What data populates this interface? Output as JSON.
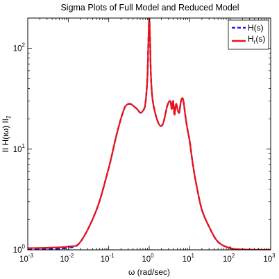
{
  "chart_data": {
    "type": "line",
    "title": "Sigma Plots of Full Model and Reduced Model",
    "xlabel": "ω (rad/sec)",
    "ylabel": "ΙΙ H(ιω) ΙΙ",
    "ylabel_subscript": "2",
    "xscale": "log",
    "yscale": "log",
    "xlim": [
      0.001,
      1000
    ],
    "ylim": [
      1,
      200
    ],
    "grid": false,
    "legend_position": "top-right",
    "x_ticks": [
      {
        "base": "10",
        "exp": "-3",
        "value": 0.001
      },
      {
        "base": "10",
        "exp": "-2",
        "value": 0.01
      },
      {
        "base": "10",
        "exp": "-1",
        "value": 0.1
      },
      {
        "base": "10",
        "exp": "0",
        "value": 1
      },
      {
        "base": "10",
        "exp": "1",
        "value": 10
      },
      {
        "base": "10",
        "exp": "2",
        "value": 100
      },
      {
        "base": "10",
        "exp": "3",
        "value": 1000
      }
    ],
    "y_ticks": [
      {
        "base": "10",
        "exp": "0",
        "value": 1
      },
      {
        "base": "10",
        "exp": "1",
        "value": 10
      },
      {
        "base": "10",
        "exp": "2",
        "value": 100
      }
    ],
    "series": [
      {
        "name": "H(s)",
        "color": "#1a1aff",
        "dash": "dashed",
        "x": [
          0.001,
          0.003,
          0.01,
          0.02,
          0.05,
          0.1,
          0.15,
          0.2,
          0.25,
          0.3,
          0.35,
          0.4,
          0.5,
          0.6,
          0.7,
          0.8,
          0.9,
          0.95,
          1.0,
          1.05,
          1.1,
          1.2,
          1.4,
          1.7,
          2.0,
          2.3,
          2.8,
          3.3,
          3.6,
          3.9,
          4.2,
          4.6,
          5.0,
          5.5,
          6.0,
          6.5,
          7.0,
          8.0,
          9.0,
          10,
          12,
          15,
          20,
          30,
          50,
          100,
          200,
          500,
          1000
        ],
        "y": [
          1.0,
          1.02,
          1.05,
          1.2,
          2.5,
          6.5,
          13,
          20,
          26,
          28,
          28,
          27,
          25,
          23,
          24,
          28,
          50,
          110,
          200,
          120,
          55,
          32,
          23,
          18,
          17,
          19,
          27,
          30,
          25,
          30,
          22,
          28,
          25,
          23,
          29,
          32,
          30,
          20,
          15,
          12,
          7,
          4.2,
          2.5,
          1.7,
          1.2,
          1.04,
          1.01,
          1.0,
          1.0
        ]
      },
      {
        "name": "H",
        "name_subscript": "r",
        "name_suffix": "(s)",
        "color": "#ee1111",
        "dash": "solid",
        "x": [
          0.001,
          0.003,
          0.01,
          0.02,
          0.05,
          0.1,
          0.15,
          0.2,
          0.25,
          0.3,
          0.35,
          0.4,
          0.5,
          0.6,
          0.7,
          0.8,
          0.9,
          0.95,
          1.0,
          1.05,
          1.1,
          1.2,
          1.4,
          1.7,
          2.0,
          2.3,
          2.8,
          3.3,
          3.6,
          3.9,
          4.2,
          4.6,
          5.0,
          5.5,
          6.0,
          6.5,
          7.0,
          8.0,
          9.0,
          10,
          12,
          15,
          20,
          30,
          50,
          100,
          200,
          500,
          1000
        ],
        "y": [
          1.04,
          1.05,
          1.08,
          1.2,
          2.5,
          6.5,
          13,
          20,
          26,
          28,
          28,
          27,
          25,
          23,
          24,
          28,
          50,
          110,
          200,
          120,
          55,
          32,
          23,
          18,
          17,
          19,
          27,
          30,
          25,
          30,
          22,
          28,
          25,
          23,
          29,
          32,
          30,
          20,
          15,
          12,
          7,
          4.2,
          2.5,
          1.7,
          1.2,
          1.04,
          1.01,
          1.0,
          1.0
        ]
      }
    ]
  }
}
